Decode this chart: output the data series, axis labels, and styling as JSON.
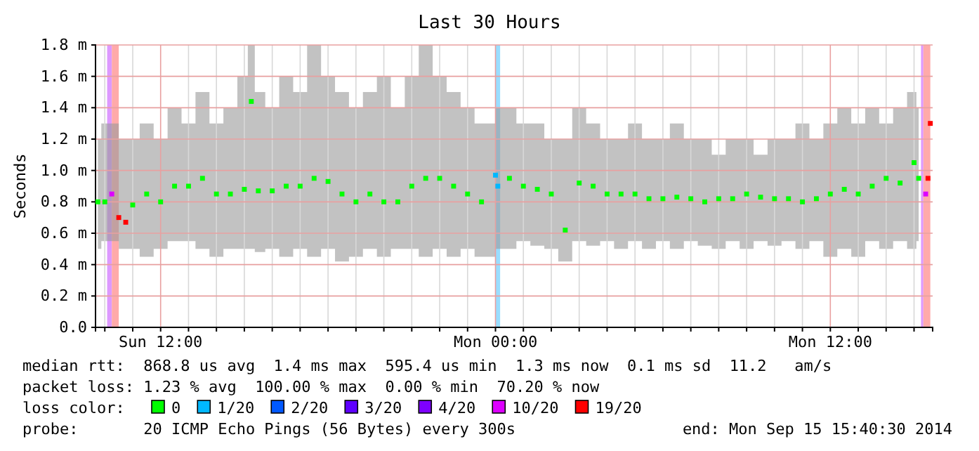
{
  "chart_data": {
    "type": "scatter",
    "title": "Last 30 Hours",
    "ylabel": "Seconds",
    "legend_title": "loss color:",
    "legend": "bottom",
    "grid": true,
    "marker": "square",
    "xlim": [
      "2014-09-14T09:40",
      "2014-09-15T15:40"
    ],
    "ylim": [
      0,
      1.8
    ],
    "yticks": [
      {
        "value": 0,
        "label": "0.0"
      },
      {
        "value": 0.2,
        "label": "0.2 m"
      },
      {
        "value": 0.4,
        "label": "0.4 m"
      },
      {
        "value": 0.6,
        "label": "0.6 m"
      },
      {
        "value": 0.8,
        "label": "0.8 m"
      },
      {
        "value": 1.0,
        "label": "1.0 m"
      },
      {
        "value": 1.2,
        "label": "1.2 m"
      },
      {
        "value": 1.4,
        "label": "1.4 m"
      },
      {
        "value": 1.6,
        "label": "1.6 m"
      },
      {
        "value": 1.8,
        "label": "1.8 m"
      }
    ],
    "xticks": [
      {
        "value": "2014-09-14T10:00",
        "label": null
      },
      {
        "value": "2014-09-14T11:00",
        "label": null
      },
      {
        "value": "2014-09-14T12:00",
        "label": "Sun 12:00"
      },
      {
        "value": "2014-09-14T13:00",
        "label": null
      },
      {
        "value": "2014-09-14T14:00",
        "label": null
      },
      {
        "value": "2014-09-14T15:00",
        "label": null
      },
      {
        "value": "2014-09-14T16:00",
        "label": null
      },
      {
        "value": "2014-09-14T17:00",
        "label": null
      },
      {
        "value": "2014-09-14T18:00",
        "label": null
      },
      {
        "value": "2014-09-14T19:00",
        "label": null
      },
      {
        "value": "2014-09-14T20:00",
        "label": null
      },
      {
        "value": "2014-09-14T21:00",
        "label": null
      },
      {
        "value": "2014-09-14T22:00",
        "label": null
      },
      {
        "value": "2014-09-14T23:00",
        "label": null
      },
      {
        "value": "2014-09-15T00:00",
        "label": "Mon 00:00"
      },
      {
        "value": "2014-09-15T01:00",
        "label": null
      },
      {
        "value": "2014-09-15T02:00",
        "label": null
      },
      {
        "value": "2014-09-15T03:00",
        "label": null
      },
      {
        "value": "2014-09-15T04:00",
        "label": null
      },
      {
        "value": "2014-09-15T05:00",
        "label": null
      },
      {
        "value": "2014-09-15T06:00",
        "label": null
      },
      {
        "value": "2014-09-15T07:00",
        "label": null
      },
      {
        "value": "2014-09-15T08:00",
        "label": null
      },
      {
        "value": "2014-09-15T09:00",
        "label": null
      },
      {
        "value": "2014-09-15T10:00",
        "label": null
      },
      {
        "value": "2014-09-15T11:00",
        "label": null
      },
      {
        "value": "2014-09-15T12:00",
        "label": "Mon 12:00"
      },
      {
        "value": "2014-09-15T13:00",
        "label": null
      },
      {
        "value": "2014-09-15T14:00",
        "label": null
      },
      {
        "value": "2014-09-15T15:00",
        "label": null
      }
    ],
    "bands": [
      {
        "axis": "x",
        "from": "2014-09-14T10:05",
        "to": "2014-09-14T10:15",
        "color": "#dd99ff"
      },
      {
        "axis": "x",
        "from": "2014-09-14T10:15",
        "to": "2014-09-14T10:30",
        "color": "#ffaaaa"
      },
      {
        "axis": "x",
        "from": "2014-09-15T00:00",
        "to": "2014-09-15T00:10",
        "color": "#99ddff"
      },
      {
        "axis": "x",
        "from": "2014-09-15T15:15",
        "to": "2014-09-15T15:20",
        "color": "#dd99ff"
      },
      {
        "axis": "x",
        "from": "2014-09-15T15:20",
        "to": "2014-09-15T15:35",
        "color": "#ffaaaa"
      }
    ],
    "series": [
      {
        "name": "0",
        "color": "#00ff00",
        "x": [
          "2014-09-14T09:45",
          "2014-09-14T10:00",
          "2014-09-14T11:00",
          "2014-09-14T11:30",
          "2014-09-14T12:00",
          "2014-09-14T12:30",
          "2014-09-14T13:00",
          "2014-09-14T13:30",
          "2014-09-14T14:00",
          "2014-09-14T14:30",
          "2014-09-14T15:00",
          "2014-09-14T15:15",
          "2014-09-14T15:30",
          "2014-09-14T16:00",
          "2014-09-14T16:30",
          "2014-09-14T17:00",
          "2014-09-14T17:30",
          "2014-09-14T18:00",
          "2014-09-14T18:30",
          "2014-09-14T19:00",
          "2014-09-14T19:30",
          "2014-09-14T20:00",
          "2014-09-14T20:30",
          "2014-09-14T21:00",
          "2014-09-14T21:30",
          "2014-09-14T22:00",
          "2014-09-14T22:30",
          "2014-09-14T23:00",
          "2014-09-14T23:30",
          "2014-09-15T00:30",
          "2014-09-15T01:00",
          "2014-09-15T01:30",
          "2014-09-15T02:00",
          "2014-09-15T02:30",
          "2014-09-15T03:00",
          "2014-09-15T03:30",
          "2014-09-15T04:00",
          "2014-09-15T04:30",
          "2014-09-15T05:00",
          "2014-09-15T05:30",
          "2014-09-15T06:00",
          "2014-09-15T06:30",
          "2014-09-15T07:00",
          "2014-09-15T07:30",
          "2014-09-15T08:00",
          "2014-09-15T08:30",
          "2014-09-15T09:00",
          "2014-09-15T09:30",
          "2014-09-15T10:00",
          "2014-09-15T10:30",
          "2014-09-15T11:00",
          "2014-09-15T11:30",
          "2014-09-15T12:00",
          "2014-09-15T12:30",
          "2014-09-15T13:00",
          "2014-09-15T13:30",
          "2014-09-15T14:00",
          "2014-09-15T14:30",
          "2014-09-15T15:00",
          "2014-09-15T15:10"
        ],
        "values": [
          0.8,
          0.8,
          0.78,
          0.85,
          0.8,
          0.9,
          0.9,
          0.95,
          0.85,
          0.85,
          0.88,
          1.44,
          0.87,
          0.87,
          0.9,
          0.9,
          0.95,
          0.93,
          0.85,
          0.8,
          0.85,
          0.8,
          0.8,
          0.9,
          0.95,
          0.95,
          0.9,
          0.85,
          0.8,
          0.95,
          0.9,
          0.88,
          0.85,
          0.62,
          0.92,
          0.9,
          0.85,
          0.85,
          0.85,
          0.82,
          0.82,
          0.83,
          0.82,
          0.8,
          0.82,
          0.82,
          0.85,
          0.83,
          0.82,
          0.82,
          0.8,
          0.82,
          0.85,
          0.88,
          0.85,
          0.9,
          0.95,
          0.92,
          1.05,
          0.95
        ],
        "lower": [
          0.5,
          0.55,
          0.5,
          0.45,
          0.5,
          0.55,
          0.55,
          0.5,
          0.45,
          0.5,
          0.5,
          0.5,
          0.48,
          0.5,
          0.45,
          0.5,
          0.45,
          0.5,
          0.42,
          0.45,
          0.5,
          0.45,
          0.5,
          0.5,
          0.45,
          0.5,
          0.45,
          0.5,
          0.45,
          0.5,
          0.55,
          0.52,
          0.5,
          0.42,
          0.55,
          0.52,
          0.55,
          0.5,
          0.55,
          0.5,
          0.55,
          0.5,
          0.55,
          0.52,
          0.5,
          0.55,
          0.5,
          0.55,
          0.52,
          0.55,
          0.5,
          0.55,
          0.45,
          0.5,
          0.45,
          0.55,
          0.5,
          0.55,
          0.5,
          0.55
        ],
        "upper": [
          1.2,
          1.3,
          1.2,
          1.3,
          1.2,
          1.4,
          1.3,
          1.5,
          1.3,
          1.4,
          1.6,
          1.8,
          1.5,
          1.4,
          1.6,
          1.5,
          1.8,
          1.6,
          1.5,
          1.4,
          1.5,
          1.6,
          1.4,
          1.6,
          1.8,
          1.6,
          1.5,
          1.4,
          1.3,
          1.4,
          1.3,
          1.3,
          1.2,
          1.2,
          1.4,
          1.3,
          1.2,
          1.2,
          1.3,
          1.2,
          1.2,
          1.3,
          1.2,
          1.2,
          1.1,
          1.2,
          1.2,
          1.1,
          1.2,
          1.2,
          1.3,
          1.2,
          1.3,
          1.4,
          1.3,
          1.4,
          1.3,
          1.4,
          1.5,
          1.4
        ]
      },
      {
        "name": "1/20",
        "color": "#00b8ff",
        "x": [
          "2014-09-15T00:00",
          "2014-09-15T00:05"
        ],
        "values": [
          0.97,
          0.9
        ]
      },
      {
        "name": "2/20",
        "color": "#0059ff"
      },
      {
        "name": "3/20",
        "color": "#5e00ff"
      },
      {
        "name": "4/20",
        "color": "#7e00ff"
      },
      {
        "name": "10/20",
        "color": "#dd00ff",
        "x": [
          "2014-09-14T10:15",
          "2014-09-15T15:25"
        ],
        "values": [
          0.85,
          0.85
        ]
      },
      {
        "name": "19/20",
        "color": "#ff0000",
        "x": [
          "2014-09-14T10:30",
          "2014-09-14T10:45",
          "2014-09-15T15:30",
          "2014-09-15T15:35"
        ],
        "values": [
          0.7,
          0.67,
          0.95,
          1.3
        ]
      }
    ],
    "annotations": [
      "median rtt:  868.8 us avg  1.4 ms max  595.4 us min  1.3 ms now  0.1 ms sd  11.2   am/s",
      "packet loss: 1.23 % avg  100.00 % max  0.00 % min  70.20 % now",
      "probe:       20 ICMP Echo Pings (56 Bytes) every 300s",
      "end: Mon Sep 15 15:40:30 2014"
    ]
  }
}
